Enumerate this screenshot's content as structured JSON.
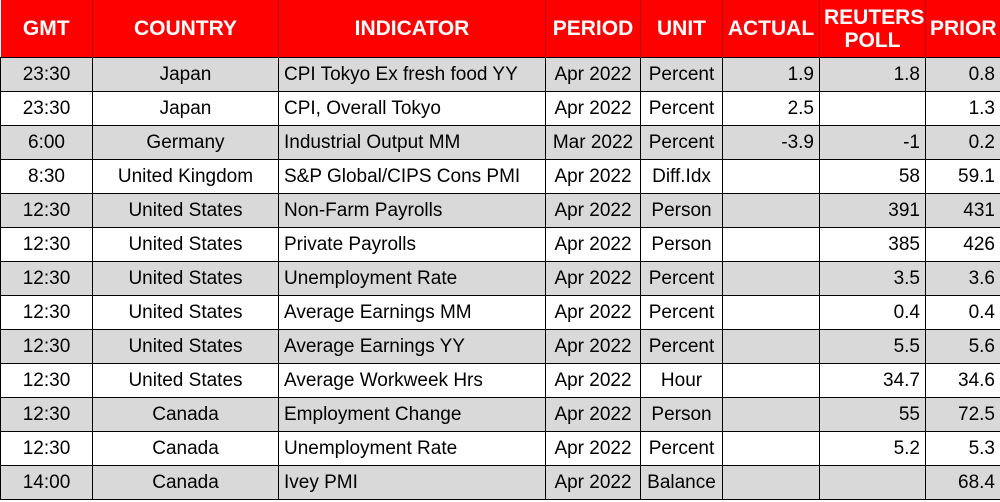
{
  "headers": [
    "GMT",
    "COUNTRY",
    "INDICATOR",
    "PERIOD",
    "UNIT",
    "ACTUAL",
    "REUTERS POLL",
    "PRIOR"
  ],
  "rows": [
    {
      "gmt": "23:30",
      "country": "Japan",
      "indicator": "CPI Tokyo Ex fresh food YY",
      "period": "Apr 2022",
      "unit": "Percent",
      "actual": "1.9",
      "poll": "1.8",
      "prior": "0.8"
    },
    {
      "gmt": "23:30",
      "country": "Japan",
      "indicator": "CPI, Overall Tokyo",
      "period": "Apr 2022",
      "unit": "Percent",
      "actual": "2.5",
      "poll": "",
      "prior": "1.3"
    },
    {
      "gmt": "6:00",
      "country": "Germany",
      "indicator": "Industrial Output MM",
      "period": "Mar 2022",
      "unit": "Percent",
      "actual": "-3.9",
      "poll": "-1",
      "prior": "0.2"
    },
    {
      "gmt": "8:30",
      "country": "United Kingdom",
      "indicator": "S&P Global/CIPS Cons PMI",
      "period": "Apr 2022",
      "unit": "Diff.Idx",
      "actual": "",
      "poll": "58",
      "prior": "59.1"
    },
    {
      "gmt": "12:30",
      "country": "United States",
      "indicator": "Non-Farm Payrolls",
      "period": "Apr 2022",
      "unit": "Person",
      "actual": "",
      "poll": "391",
      "prior": "431"
    },
    {
      "gmt": "12:30",
      "country": "United States",
      "indicator": "Private Payrolls",
      "period": "Apr 2022",
      "unit": "Person",
      "actual": "",
      "poll": "385",
      "prior": "426"
    },
    {
      "gmt": "12:30",
      "country": "United States",
      "indicator": "Unemployment Rate",
      "period": "Apr 2022",
      "unit": "Percent",
      "actual": "",
      "poll": "3.5",
      "prior": "3.6"
    },
    {
      "gmt": "12:30",
      "country": "United States",
      "indicator": "Average Earnings MM",
      "period": "Apr 2022",
      "unit": "Percent",
      "actual": "",
      "poll": "0.4",
      "prior": "0.4"
    },
    {
      "gmt": "12:30",
      "country": "United States",
      "indicator": "Average Earnings YY",
      "period": "Apr 2022",
      "unit": "Percent",
      "actual": "",
      "poll": "5.5",
      "prior": "5.6"
    },
    {
      "gmt": "12:30",
      "country": "United States",
      "indicator": "Average Workweek Hrs",
      "period": "Apr 2022",
      "unit": "Hour",
      "actual": "",
      "poll": "34.7",
      "prior": "34.6"
    },
    {
      "gmt": "12:30",
      "country": "Canada",
      "indicator": "Employment Change",
      "period": "Apr 2022",
      "unit": "Person",
      "actual": "",
      "poll": "55",
      "prior": "72.5"
    },
    {
      "gmt": "12:30",
      "country": "Canada",
      "indicator": "Unemployment Rate",
      "period": "Apr 2022",
      "unit": "Percent",
      "actual": "",
      "poll": "5.2",
      "prior": "5.3"
    },
    {
      "gmt": "14:00",
      "country": "Canada",
      "indicator": "Ivey PMI",
      "period": "Apr 2022",
      "unit": "Balance",
      "actual": "",
      "poll": "",
      "prior": "68.4"
    }
  ],
  "colors": {
    "header_bg": "#ff0000",
    "header_text": "#ffffff",
    "row_shade": "#d9d9d9",
    "row_plain": "#ffffff"
  }
}
